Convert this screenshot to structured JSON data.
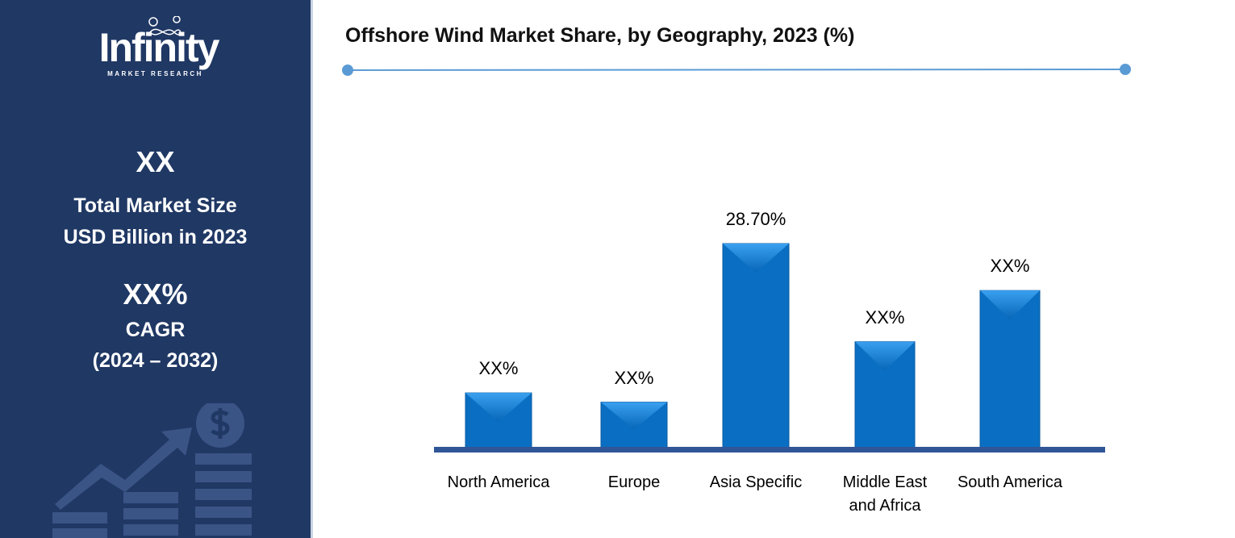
{
  "sidebar": {
    "logo_main": "Infinity",
    "logo_sub": "MARKET RESEARCH",
    "market_size_value": "XX",
    "market_size_label_1": "Total Market Size",
    "market_size_label_2": "USD Billion in 2023",
    "cagr_value": "XX%",
    "cagr_label": "CAGR",
    "cagr_period": "(2024 – 2032)"
  },
  "colors": {
    "sidebar": "#203864",
    "bar": "#0a6fc2",
    "axis": "#2f5597",
    "accent_line": "#5b9bd5"
  },
  "chart_data": {
    "type": "bar",
    "title": "Offshore Wind Market Share, by Geography, 2023 (%)",
    "categories": [
      "North America",
      "Europe",
      "Asia Specific",
      "Middle East and Africa",
      "South America"
    ],
    "category_lines": [
      [
        "North America"
      ],
      [
        "Europe"
      ],
      [
        "Asia Specific"
      ],
      [
        "Middle East",
        "and Africa"
      ],
      [
        "South America"
      ]
    ],
    "values": [
      7.7,
      6.4,
      28.7,
      14.9,
      22.1
    ],
    "data_labels": [
      "XX%",
      "XX%",
      "28.70%",
      "XX%",
      "XX%"
    ],
    "ylim": [
      0,
      28.7
    ],
    "xlabel": "",
    "ylabel": "",
    "grid": false
  }
}
